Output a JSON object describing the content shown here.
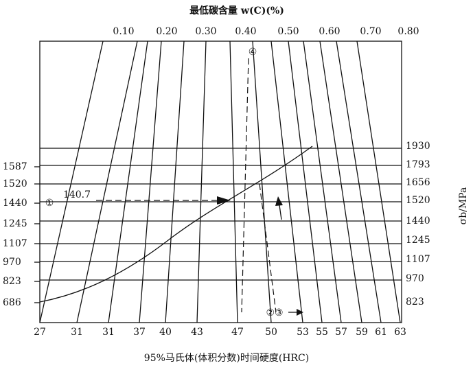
{
  "top_axis": {
    "title": "最低碳含量 w(C)(%)",
    "ticks": [
      "0.10",
      "0.20",
      "0.30",
      "0.40",
      "0.50",
      "0.60",
      "0.70",
      "0.80"
    ]
  },
  "left_axis": {
    "ticks": [
      "1587",
      "1520",
      "1440",
      "1245",
      "1107",
      "970",
      "823",
      "686"
    ]
  },
  "right_axis": {
    "title": "σb/MPa",
    "ticks": [
      "1930",
      "1793",
      "1656",
      "1520",
      "1440",
      "1245",
      "1107",
      "970",
      "823"
    ]
  },
  "bottom_axis": {
    "title": "95%马氏体(体积分数)时间硬度(HRC)",
    "ticks": [
      "27",
      "31",
      "31",
      "37",
      "40",
      "43",
      "47",
      "50",
      "53",
      "55",
      "57",
      "59",
      "61",
      "63"
    ]
  },
  "annotations": {
    "mark1": "①",
    "value": "140.7",
    "mark23": "②③",
    "mark4": "④"
  }
}
